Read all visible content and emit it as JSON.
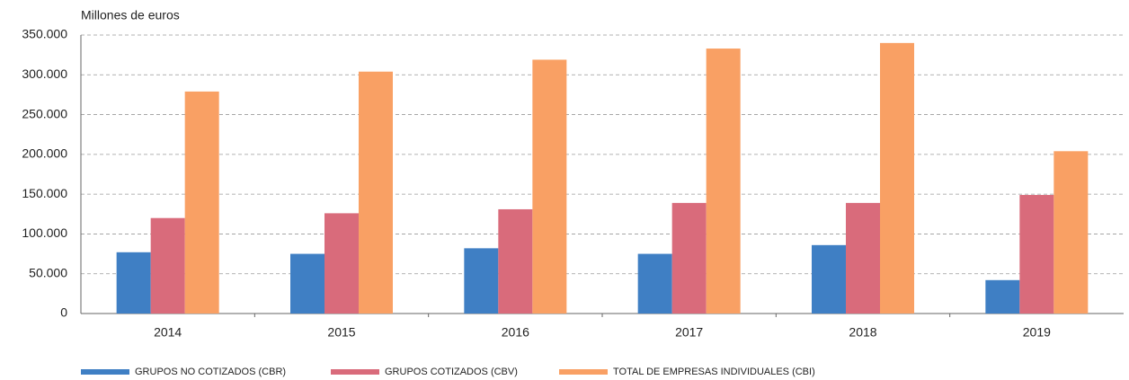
{
  "chart_data": {
    "type": "bar",
    "y_axis_label": "Millones de euros",
    "categories": [
      "2014",
      "2015",
      "2016",
      "2017",
      "2018",
      "2019"
    ],
    "series": [
      {
        "name": "GRUPOS NO COTIZADOS (CBR)",
        "color": "#3f7fc4",
        "values": [
          77000,
          75000,
          82000,
          75000,
          86000,
          42000
        ]
      },
      {
        "name": "GRUPOS COTIZADOS (CBV)",
        "color": "#d96b7b",
        "values": [
          120000,
          126000,
          131000,
          139000,
          139000,
          149000
        ]
      },
      {
        "name": "TOTAL DE EMPRESAS INDIVIDUALES (CBI)",
        "color": "#f9a064",
        "values": [
          279000,
          304000,
          319000,
          333000,
          340000,
          204000
        ]
      }
    ],
    "ylim": [
      0,
      350000
    ],
    "yticks": [
      0,
      {
        "value": 50000,
        "label": "50.000"
      },
      {
        "value": 100000,
        "label": "100.000"
      },
      {
        "value": 150000,
        "label": "150.000"
      },
      {
        "value": 200000,
        "label": "200.000"
      },
      {
        "value": 250000,
        "label": "250.000"
      },
      {
        "value": 300000,
        "label": "300.000"
      },
      {
        "value": 350000,
        "label": "350.000"
      }
    ],
    "grid": true,
    "legend": "bottom"
  }
}
